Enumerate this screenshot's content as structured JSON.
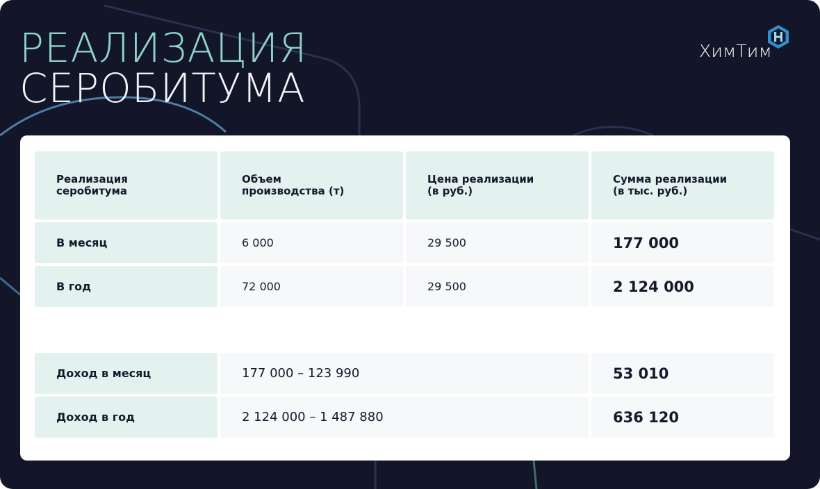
{
  "title": {
    "line1": "РЕАЛИЗАЦИЯ",
    "line2": "СЕРОБИТУМА"
  },
  "brand": {
    "name": "ХимТим",
    "logo_icon": "hexagon-h-logo-icon",
    "accent": "#3aa3d9"
  },
  "colors": {
    "background": "#131628",
    "title_accent": "#8fd3cc",
    "header_cell": "#e3f2ef",
    "value_cell": "#f7f8f9"
  },
  "table": {
    "headers": [
      "Реализация\nсеробитума",
      "Объем\nпроизводства (т)",
      "Цена реализации\n(в руб.)",
      "Сумма реализации\n(в тыс. руб.)"
    ],
    "rows": [
      {
        "label": "В месяц",
        "volume": "6 000",
        "price": "29 500",
        "sum": "177 000"
      },
      {
        "label": "В год",
        "volume": "72 000",
        "price": "29 500",
        "sum": "2 124 000"
      }
    ]
  },
  "income": [
    {
      "label": "Доход в месяц",
      "formula": "177 000 – 123 990",
      "result": "53 010"
    },
    {
      "label": "Доход в год",
      "formula": "2 124 000 – 1 487 880",
      "result": "636 120"
    }
  ]
}
